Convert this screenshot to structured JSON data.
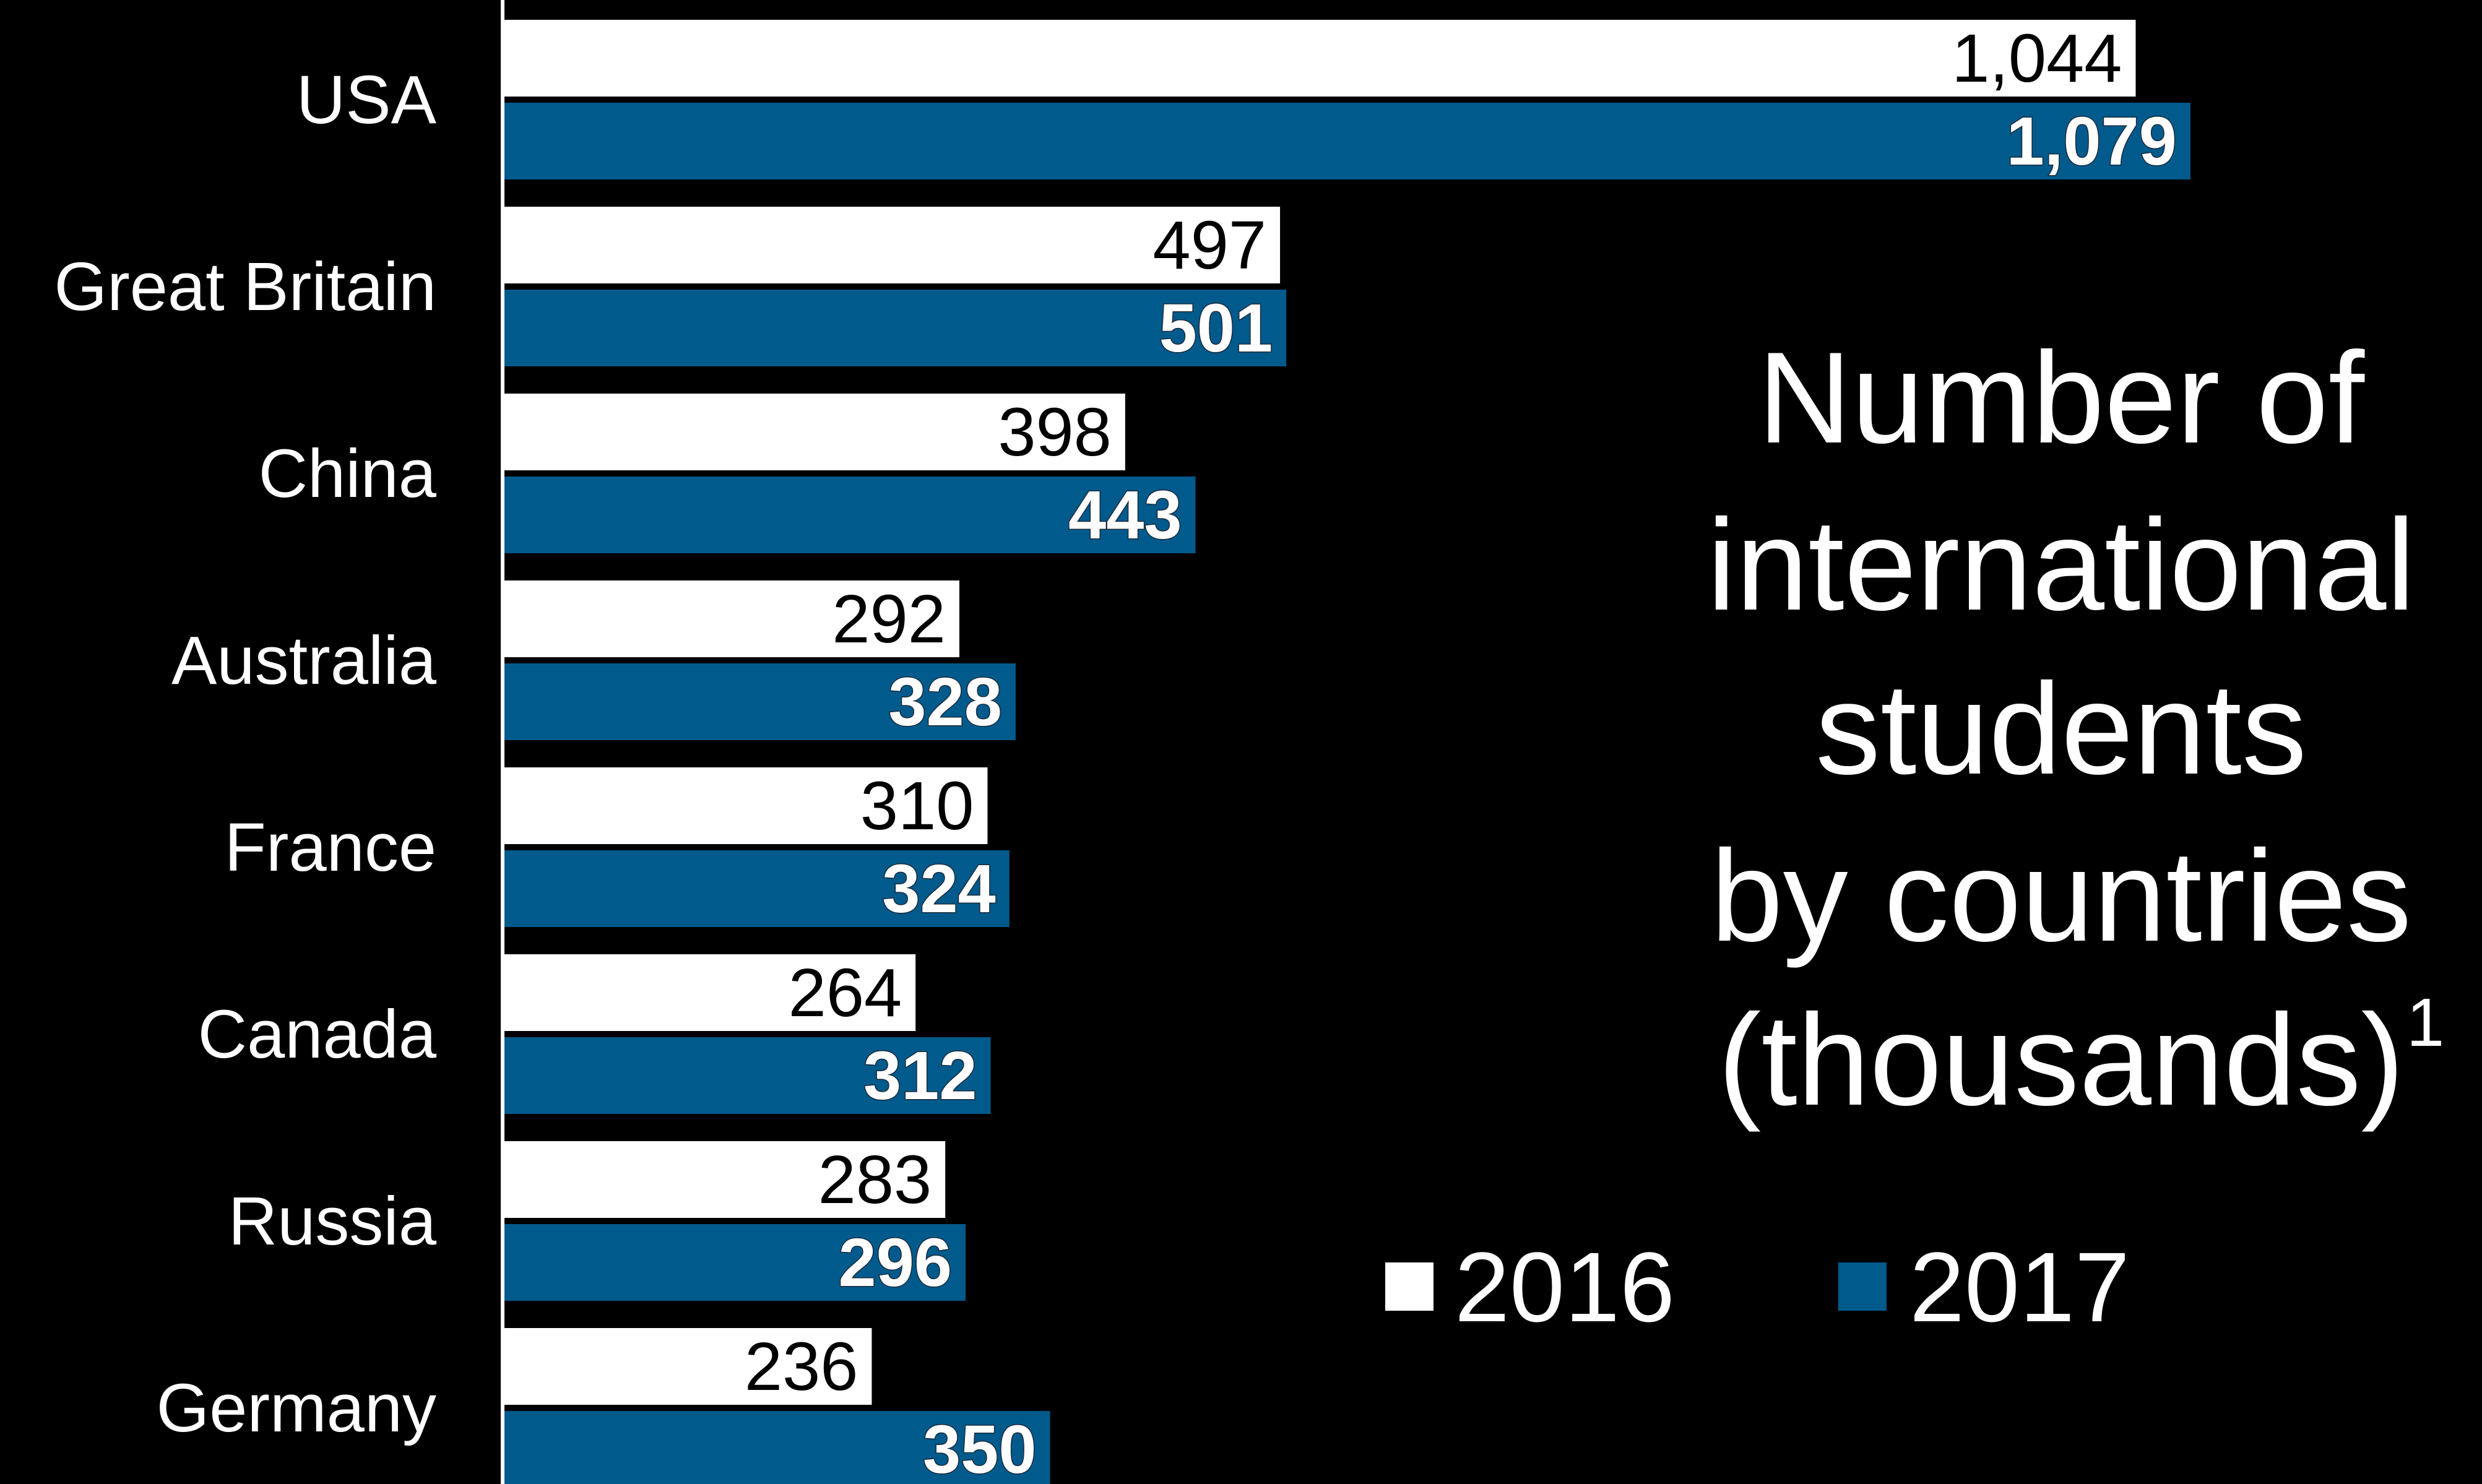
{
  "chart_data": {
    "type": "bar",
    "orientation": "horizontal",
    "title_lines": [
      "Number of",
      "international",
      "students",
      "by countries",
      "(thousands)"
    ],
    "title_superscript": "1",
    "categories": [
      "USA",
      "Great Britain",
      "China",
      "Australia",
      "France",
      "Canada",
      "Russia",
      "Germany"
    ],
    "series": [
      {
        "name": "2016",
        "color": "#ffffff",
        "values": [
          1044,
          497,
          398,
          292,
          310,
          264,
          283,
          236
        ],
        "labels": [
          "1,044",
          "497",
          "398",
          "292",
          "310",
          "264",
          "283",
          "236"
        ]
      },
      {
        "name": "2017",
        "color": "#005a8c",
        "values": [
          1079,
          501,
          443,
          328,
          324,
          312,
          296,
          350
        ],
        "labels": [
          "1,079",
          "501",
          "443",
          "328",
          "324",
          "312",
          "296",
          "350"
        ]
      }
    ],
    "xlim": [
      0,
      1100
    ],
    "grid": false,
    "legend_position": "bottom-right",
    "background": "#000000",
    "axis_color": "#ffffff"
  }
}
